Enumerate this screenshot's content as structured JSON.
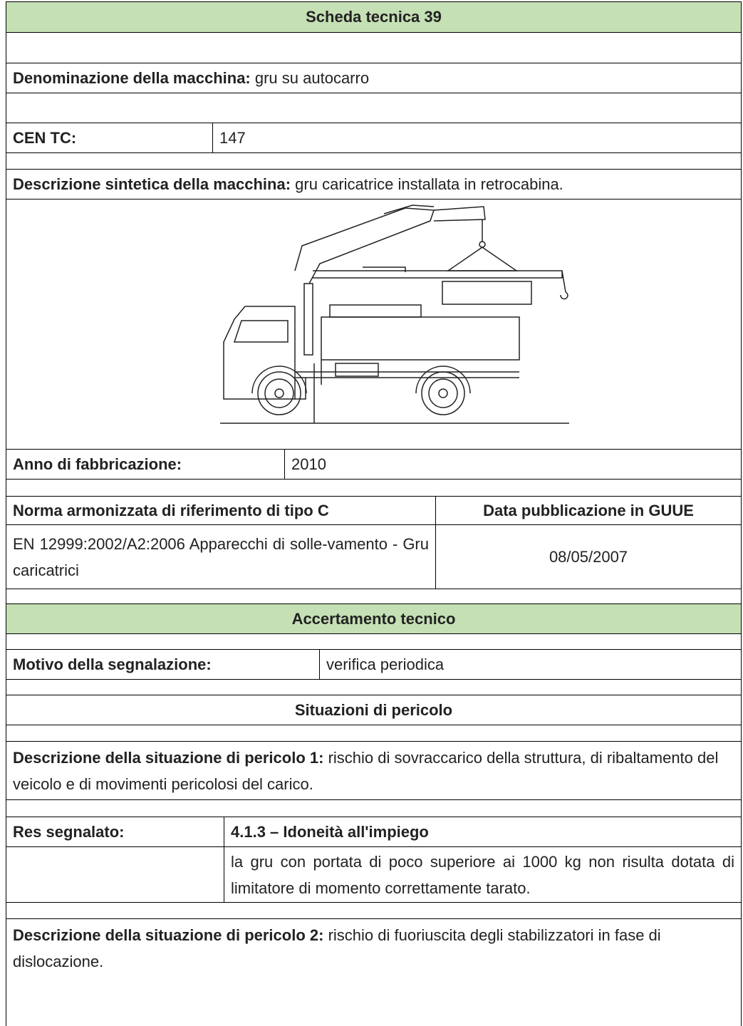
{
  "header": {
    "title": "Scheda tecnica 39"
  },
  "machine": {
    "name_label": "Denominazione della macchina:",
    "name": "gru su autocarro",
    "cen_tc_label": "CEN TC:",
    "cen_tc": "147",
    "description_label": "Descrizione sintetica della macchina:",
    "description": "gru caricatrice installata in retrocabina.",
    "year_label": "Anno di fabbricazione:",
    "year": "2010"
  },
  "standard": {
    "headers": [
      "Norma armonizzata di riferimento di tipo C",
      "Data pubblicazione in GUUE"
    ],
    "rows": [
      [
        "EN 12999:2002/A2:2006 Apparecchi di solle-vamento - Gru caricatrici",
        "08/05/2007"
      ]
    ]
  },
  "assessment": {
    "title": "Accertamento tecnico",
    "reason_label": "Motivo della segnalazione:",
    "reason": "verifica periodica"
  },
  "hazards": {
    "title": "Situazioni di pericolo",
    "items": [
      {
        "label": "Descrizione della situazione di pericolo 1:",
        "text": "rischio di sovraccarico della struttura, di ribaltamento del veicolo e di movimenti pericolosi del carico.",
        "res_label": "Res segnalato:",
        "res": "4.1.3 – Idoneità all'impiego",
        "res_text": "la gru con portata di poco superiore ai 1000 kg non risulta dotata di limitatore di momento correttamente tarato."
      },
      {
        "label": "Descrizione della situazione di pericolo 2:",
        "text": "rischio di fuoriuscita degli stabilizzatori in fase di dislocazione."
      }
    ]
  }
}
